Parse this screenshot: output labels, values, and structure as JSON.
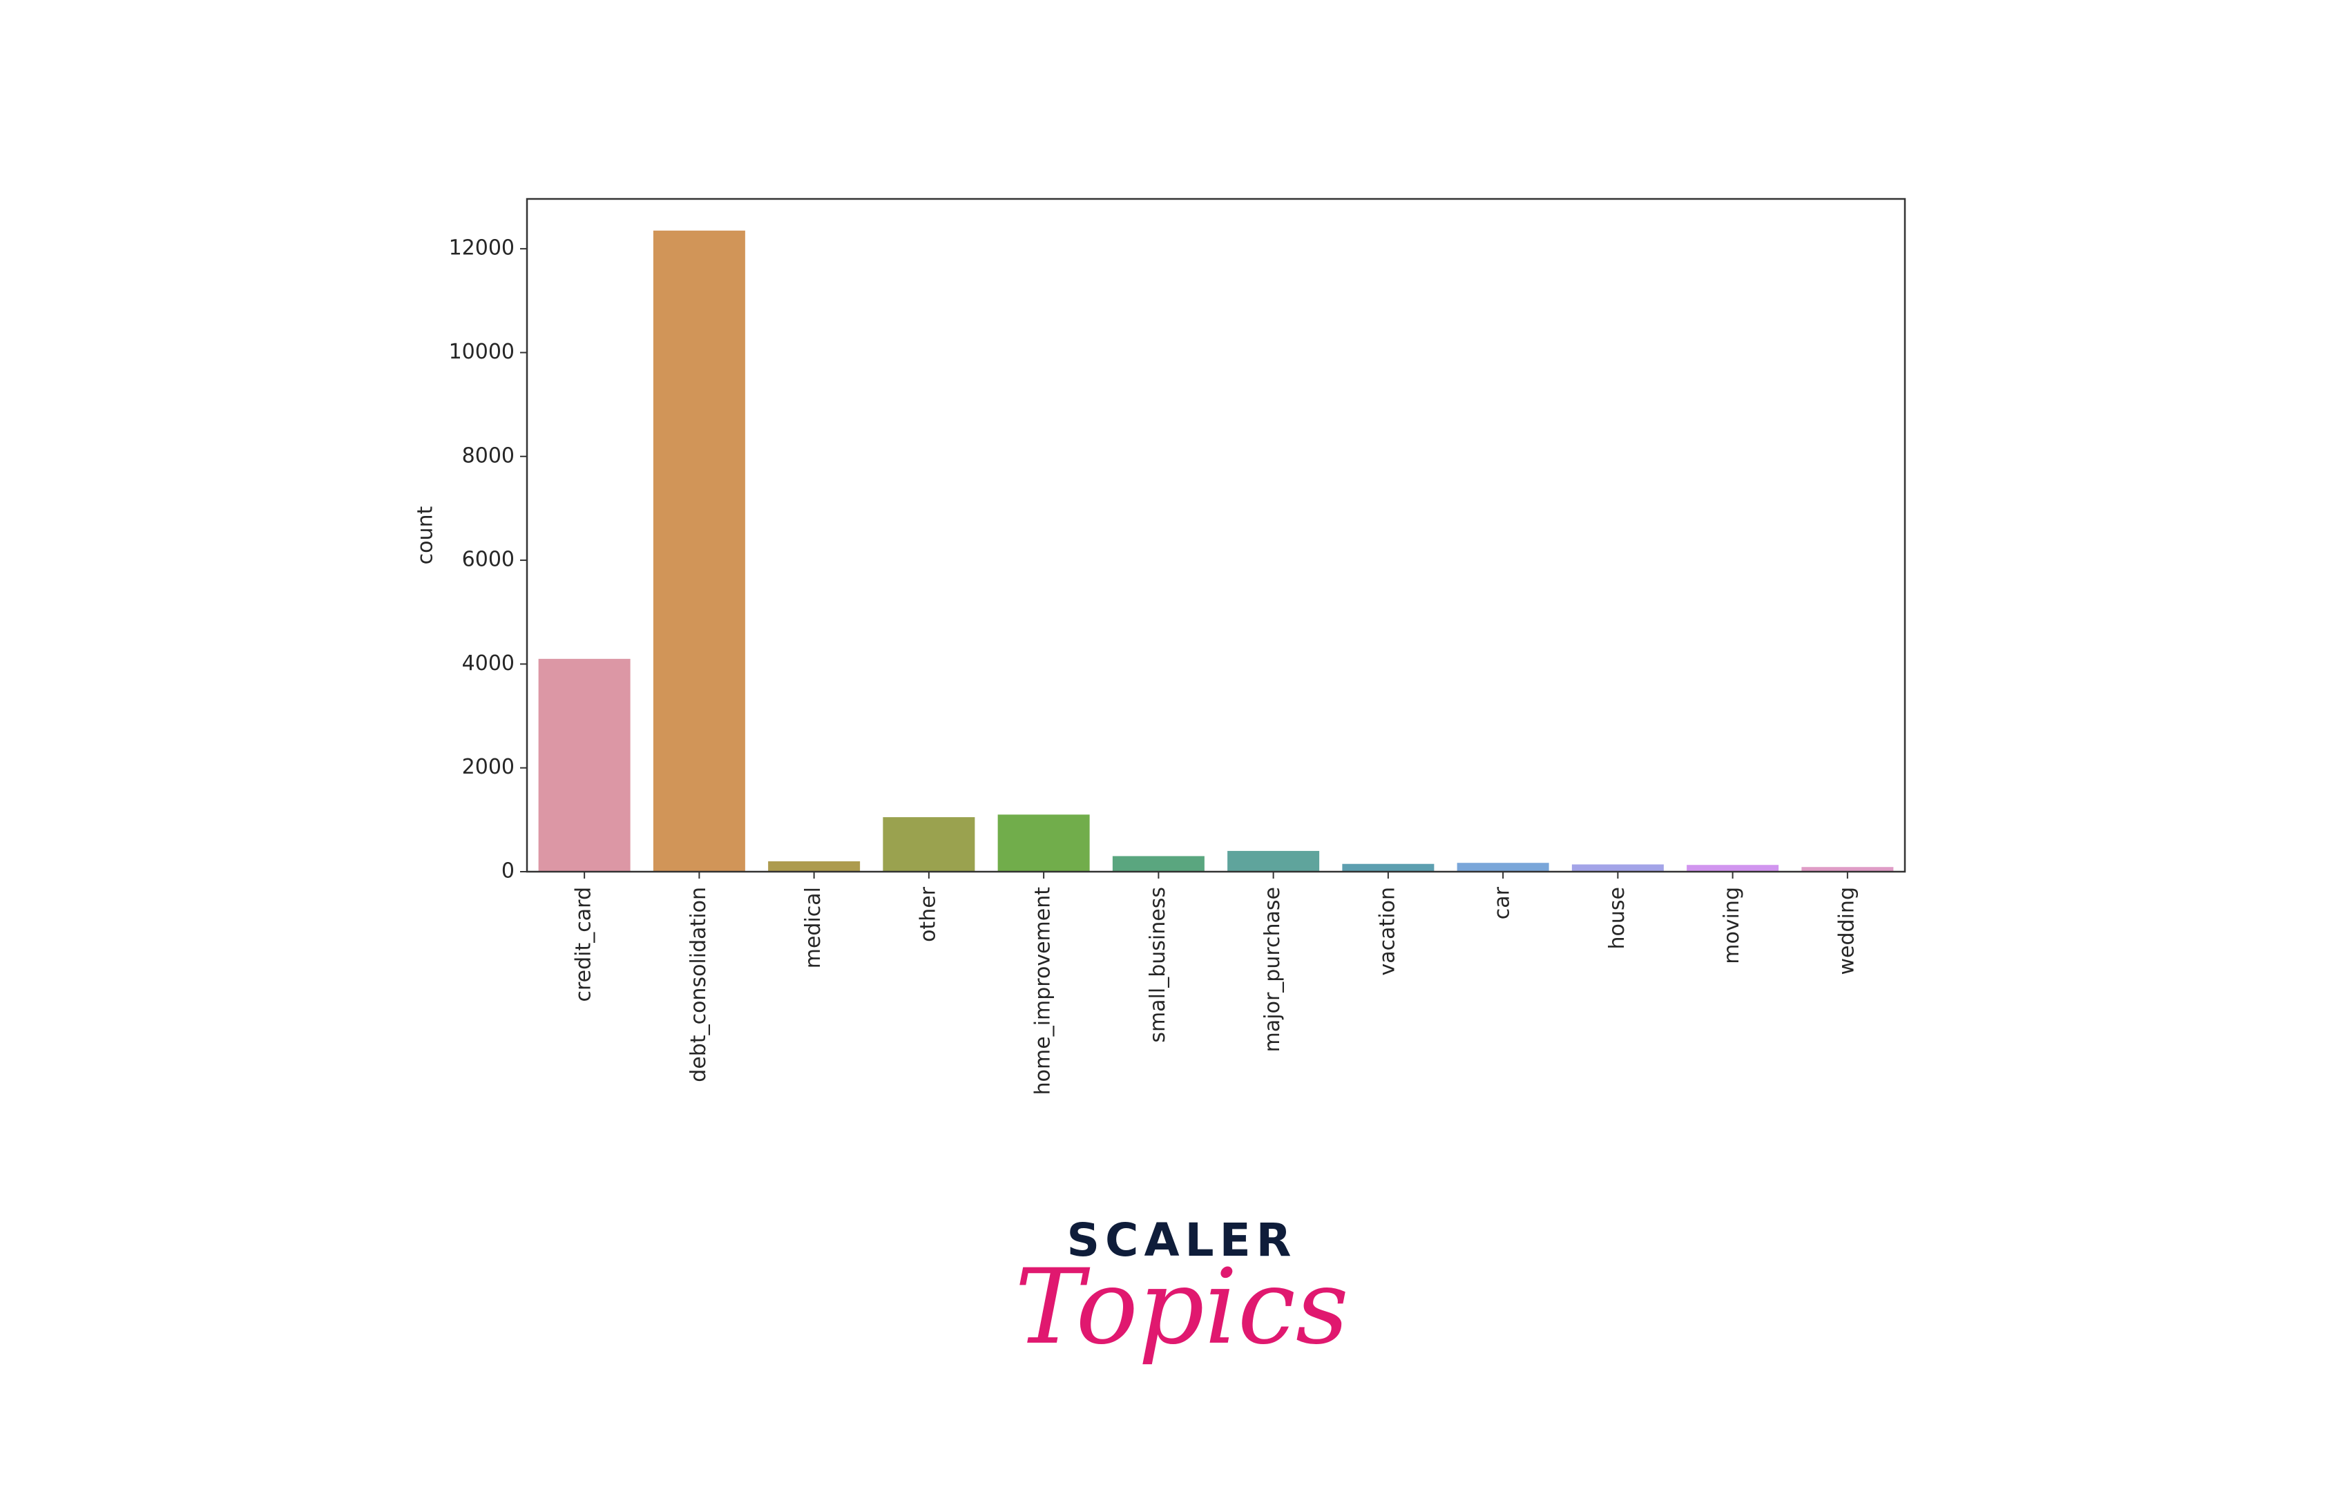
{
  "chart_data": {
    "type": "bar",
    "y_label": "count",
    "categories": [
      "credit_card",
      "debt_consolidation",
      "medical",
      "other",
      "home_improvement",
      "small_business",
      "major_purchase",
      "vacation",
      "car",
      "house",
      "moving",
      "wedding"
    ],
    "values": [
      4100,
      12350,
      200,
      1050,
      1100,
      300,
      400,
      150,
      170,
      140,
      130,
      90
    ],
    "colors": [
      "#dc97a5",
      "#d19558",
      "#ad9b4e",
      "#9aa24f",
      "#71ad4b",
      "#5aa67f",
      "#5fa49c",
      "#5d9fb0",
      "#7aa6d9",
      "#a3a4e8",
      "#d195ef",
      "#df9cc6"
    ],
    "ylim": [
      0,
      12960
    ],
    "yticks": [
      0,
      2000,
      4000,
      6000,
      8000,
      10000,
      12000
    ]
  },
  "logo": {
    "top": "SCALER",
    "bottom": "Topics"
  }
}
